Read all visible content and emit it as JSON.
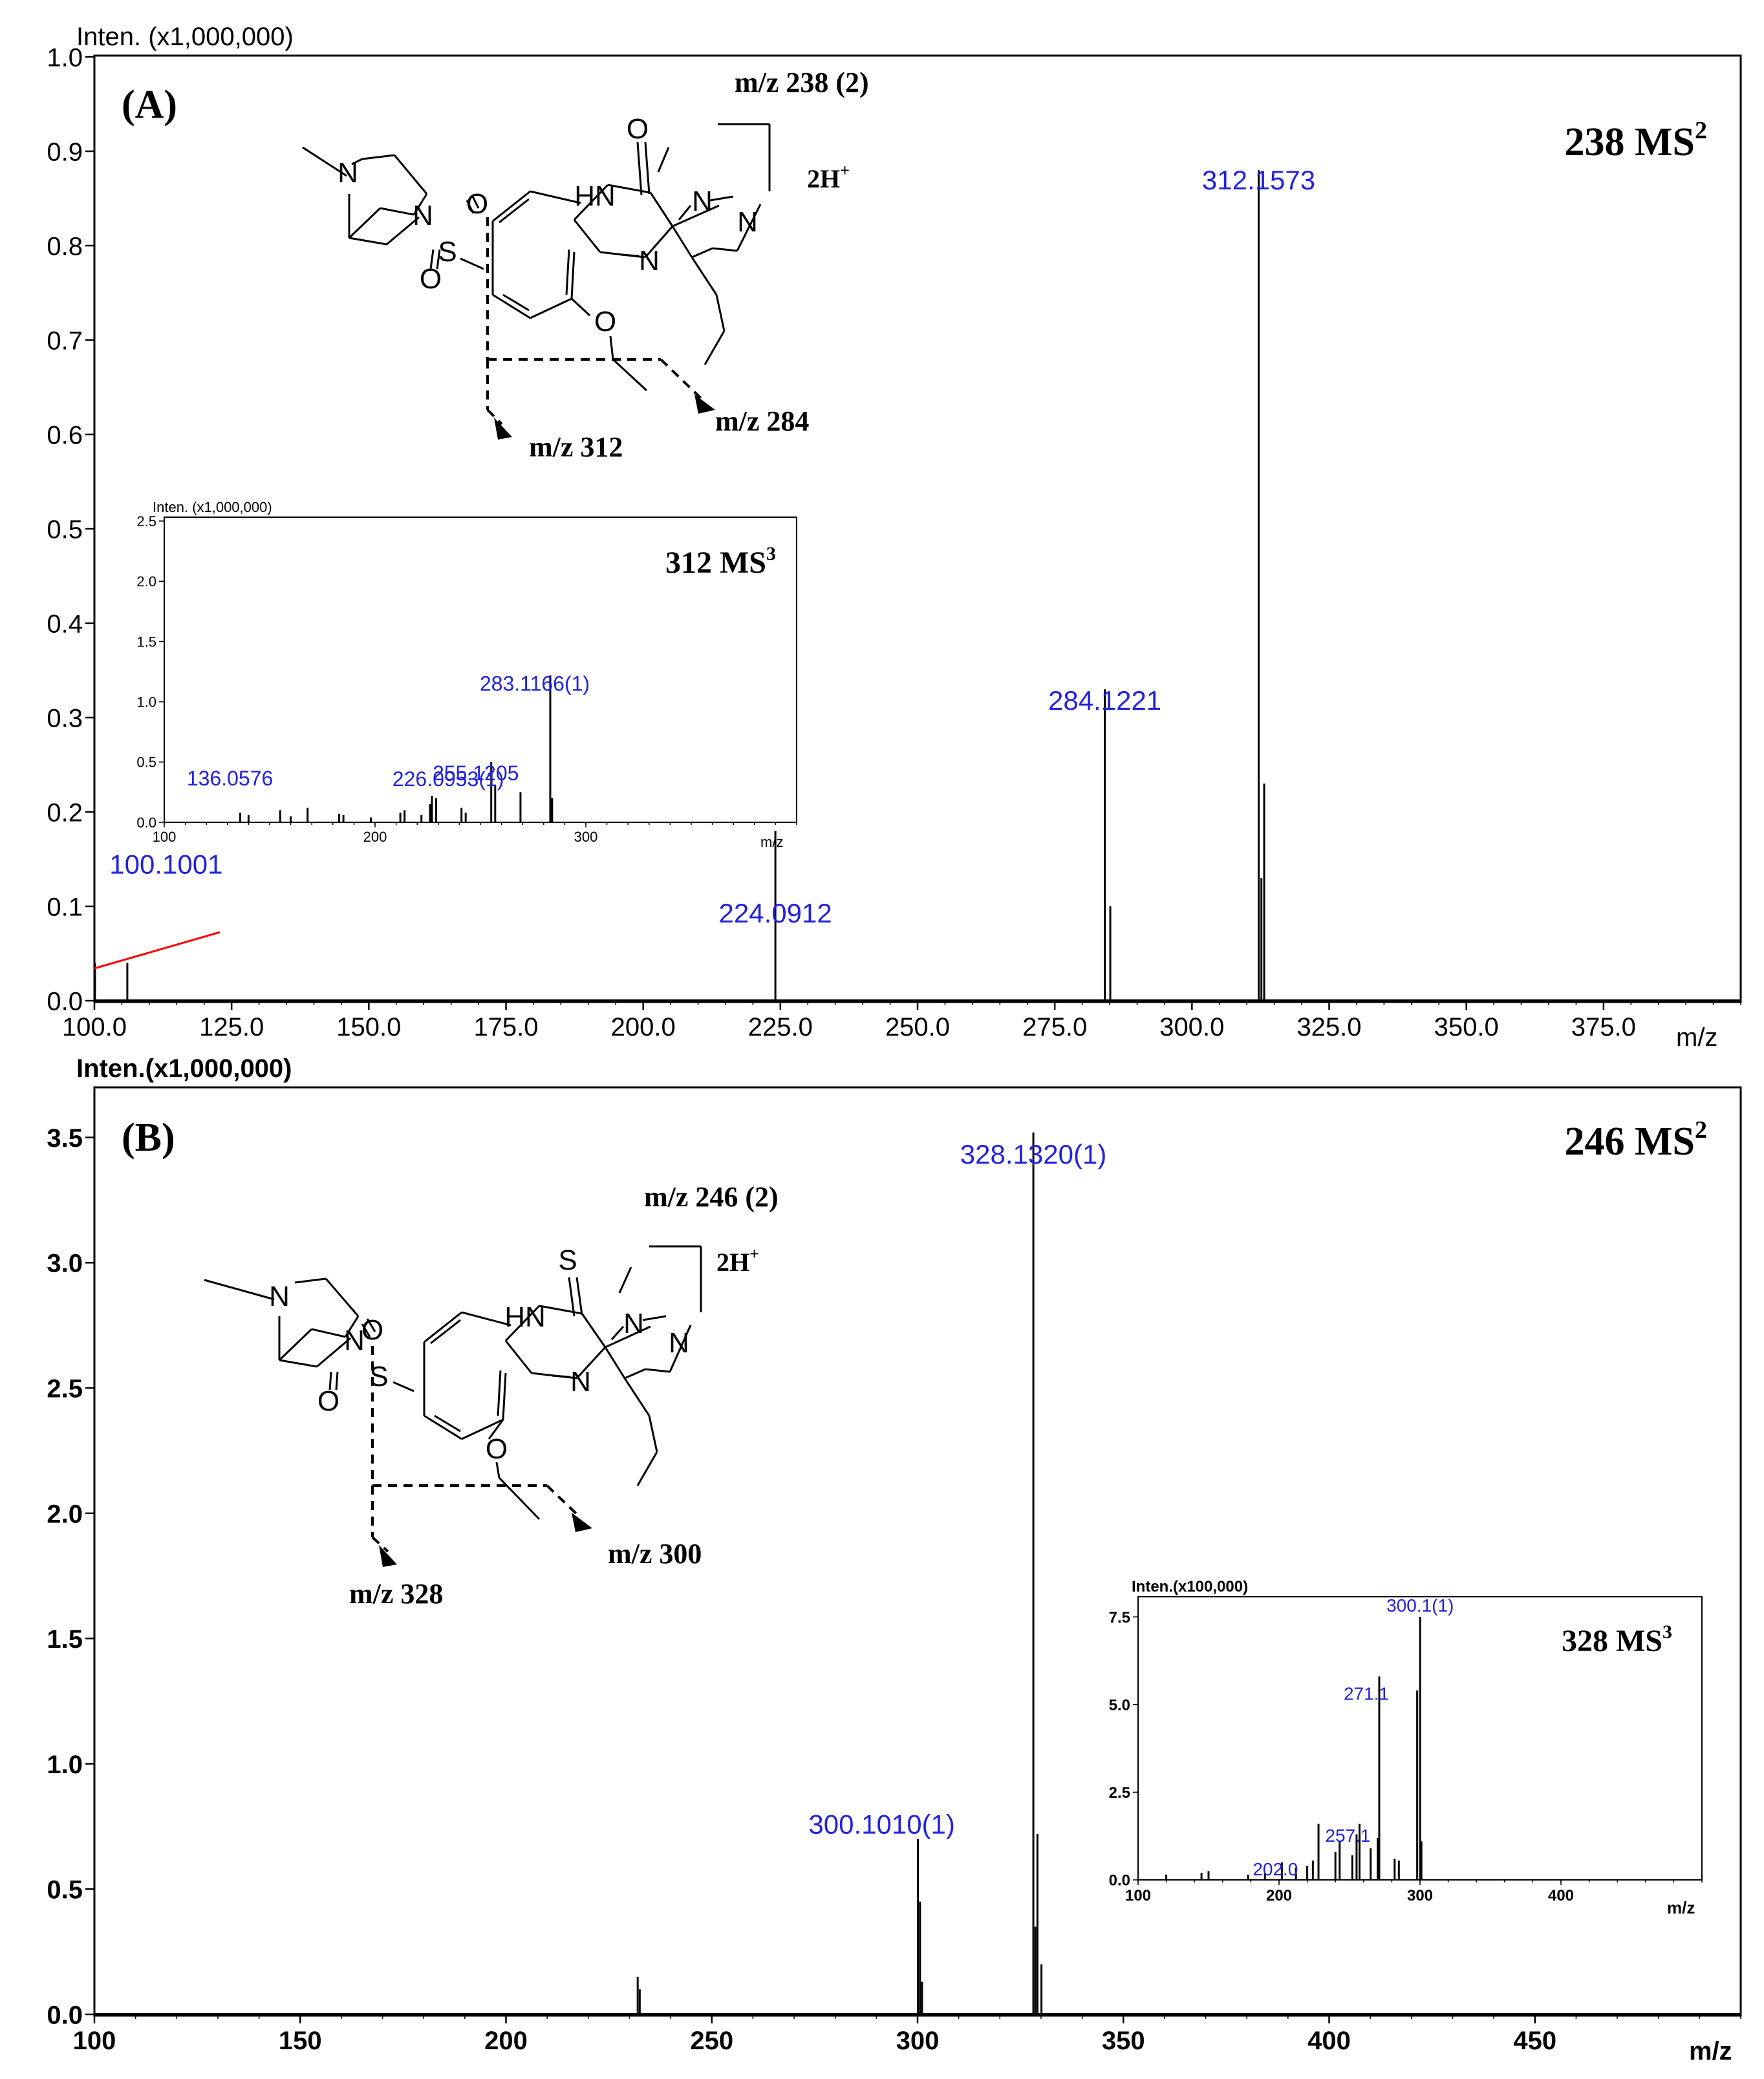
{
  "colors": {
    "peak_label": "#2222dd",
    "axis": "#000000",
    "annotation_line": "#ff0000",
    "background": "#ffffff"
  },
  "panel_a": {
    "panel_label": "(A)",
    "title_mz": "238",
    "title_ms": "MS",
    "title_sup": "2",
    "precursor_label": "m/z 238 (2)",
    "charge_label": "2H",
    "charge_sup": "+",
    "fragment_labels": [
      "m/z 312",
      "m/z 284"
    ],
    "structure_atoms": [
      "O",
      "N",
      "N",
      "N",
      "HN",
      "N",
      "N",
      "S",
      "O",
      "O",
      "O"
    ],
    "chart_data": {
      "type": "bar",
      "title": "238 MS2",
      "xlabel": "m/z",
      "ylabel": "Inten. (x1,000,000)",
      "xlim": [
        100,
        400
      ],
      "ylim": [
        0,
        1.0
      ],
      "x_ticks": [
        "100.0",
        "125.0",
        "150.0",
        "175.0",
        "200.0",
        "225.0",
        "250.0",
        "275.0",
        "300.0",
        "325.0",
        "350.0",
        "375.0"
      ],
      "y_ticks": [
        "0.0",
        "0.1",
        "0.2",
        "0.3",
        "0.4",
        "0.5",
        "0.6",
        "0.7",
        "0.8",
        "0.9",
        "1.0"
      ],
      "peaks": [
        {
          "x": 100.1001,
          "y": 0.04
        },
        {
          "x": 106.0,
          "y": 0.04
        },
        {
          "x": 224.0912,
          "y": 0.18
        },
        {
          "x": 284.1221,
          "y": 0.33
        },
        {
          "x": 285.12,
          "y": 0.1
        },
        {
          "x": 312.1573,
          "y": 0.88
        },
        {
          "x": 312.65,
          "y": 0.13
        },
        {
          "x": 313.16,
          "y": 0.23
        }
      ],
      "labels": [
        {
          "text": "312.1573",
          "x": 312.1573
        },
        {
          "text": "284.1221",
          "x": 284.1221
        },
        {
          "text": "224.0912",
          "x": 224.0912
        },
        {
          "text": "100.1001",
          "x": 100.1001
        }
      ]
    }
  },
  "inset_a": {
    "title_mz": "312",
    "title_ms": "MS",
    "title_sup": "3",
    "chart_data": {
      "type": "bar",
      "title": "312 MS3",
      "xlabel": "m/z",
      "ylabel": "Inten. (x1,000,000)",
      "xlim": [
        100,
        400
      ],
      "ylim": [
        0,
        2.5
      ],
      "x_ticks": [
        "100",
        "200",
        "300"
      ],
      "y_ticks": [
        "0.0",
        "0.5",
        "1.0",
        "1.5",
        "2.0",
        "2.5"
      ],
      "peaks": [
        {
          "x": 136.06,
          "y": 0.08
        },
        {
          "x": 140,
          "y": 0.06
        },
        {
          "x": 155,
          "y": 0.1
        },
        {
          "x": 160,
          "y": 0.05
        },
        {
          "x": 168,
          "y": 0.12
        },
        {
          "x": 183,
          "y": 0.07
        },
        {
          "x": 185,
          "y": 0.06
        },
        {
          "x": 198,
          "y": 0.04
        },
        {
          "x": 212,
          "y": 0.08
        },
        {
          "x": 214,
          "y": 0.1
        },
        {
          "x": 222,
          "y": 0.06
        },
        {
          "x": 226.1,
          "y": 0.15
        },
        {
          "x": 227,
          "y": 0.22
        },
        {
          "x": 229,
          "y": 0.2
        },
        {
          "x": 241,
          "y": 0.12
        },
        {
          "x": 243,
          "y": 0.08
        },
        {
          "x": 255.12,
          "y": 0.5
        },
        {
          "x": 257,
          "y": 0.3
        },
        {
          "x": 269,
          "y": 0.25
        },
        {
          "x": 283.12,
          "y": 1.22
        },
        {
          "x": 284,
          "y": 0.2
        }
      ],
      "labels": [
        {
          "text": "283.1166(1)",
          "x": 283.12
        },
        {
          "text": "255.1205",
          "x": 255.12
        },
        {
          "text": "226.0953(1)",
          "x": 226.1
        },
        {
          "text": "136.0576",
          "x": 136.06
        }
      ]
    }
  },
  "panel_b": {
    "panel_label": "(B)",
    "title_mz": "246",
    "title_ms": "MS",
    "title_sup": "2",
    "precursor_label": "m/z 246 (2)",
    "charge_label": "2H",
    "charge_sup": "+",
    "fragment_labels": [
      "m/z 328",
      "m/z 300"
    ],
    "structure_atoms": [
      "S",
      "N",
      "N",
      "N",
      "HN",
      "N",
      "N",
      "S",
      "O",
      "O",
      "O"
    ],
    "chart_data": {
      "type": "bar",
      "title": "246 MS2",
      "xlabel": "m/z",
      "ylabel": "Inten.(x1,000,000)",
      "xlim": [
        100,
        500
      ],
      "ylim": [
        0,
        3.7
      ],
      "x_ticks": [
        "100",
        "150",
        "200",
        "250",
        "300",
        "350",
        "400",
        "450"
      ],
      "y_ticks": [
        "0.0",
        "0.5",
        "1.0",
        "1.5",
        "2.0",
        "2.5",
        "3.0",
        "3.5"
      ],
      "peaks": [
        {
          "x": 232,
          "y": 0.15
        },
        {
          "x": 232.5,
          "y": 0.1
        },
        {
          "x": 300.101,
          "y": 0.7
        },
        {
          "x": 300.6,
          "y": 0.45
        },
        {
          "x": 301.1,
          "y": 0.13
        },
        {
          "x": 328.132,
          "y": 3.52
        },
        {
          "x": 328.63,
          "y": 0.35
        },
        {
          "x": 329.13,
          "y": 0.72
        },
        {
          "x": 330.1,
          "y": 0.2
        }
      ],
      "labels": [
        {
          "text": "328.1320(1)",
          "x": 328.132
        },
        {
          "text": "300.1010(1)",
          "x": 300.101
        }
      ]
    }
  },
  "inset_b": {
    "title_mz": "328",
    "title_ms": "MS",
    "title_sup": "3",
    "chart_data": {
      "type": "bar",
      "title": "328 MS3",
      "xlabel": "m/z",
      "ylabel": "Inten.(x100,000)",
      "xlim": [
        100,
        500
      ],
      "ylim": [
        0,
        8
      ],
      "x_ticks": [
        "100",
        "200",
        "300",
        "400"
      ],
      "y_ticks": [
        "0.0",
        "2.5",
        "5.0",
        "7.5"
      ],
      "peaks": [
        {
          "x": 120,
          "y": 0.15
        },
        {
          "x": 145,
          "y": 0.2
        },
        {
          "x": 150,
          "y": 0.25
        },
        {
          "x": 178,
          "y": 0.15
        },
        {
          "x": 190,
          "y": 0.2
        },
        {
          "x": 202.0,
          "y": 0.5
        },
        {
          "x": 212,
          "y": 0.35
        },
        {
          "x": 220,
          "y": 0.4
        },
        {
          "x": 224,
          "y": 0.55
        },
        {
          "x": 228,
          "y": 1.6
        },
        {
          "x": 240,
          "y": 0.8
        },
        {
          "x": 243,
          "y": 1.1
        },
        {
          "x": 252,
          "y": 0.7
        },
        {
          "x": 255,
          "y": 1.3
        },
        {
          "x": 257.1,
          "y": 1.6
        },
        {
          "x": 265,
          "y": 0.9
        },
        {
          "x": 270,
          "y": 1.2
        },
        {
          "x": 271.1,
          "y": 5.8
        },
        {
          "x": 282,
          "y": 0.6
        },
        {
          "x": 285,
          "y": 0.55
        },
        {
          "x": 298,
          "y": 5.4
        },
        {
          "x": 300.1,
          "y": 7.5
        },
        {
          "x": 301,
          "y": 1.1
        }
      ],
      "labels": [
        {
          "text": "300.1(1)",
          "x": 300.1
        },
        {
          "text": "271.1",
          "x": 271.1
        },
        {
          "text": "257.1",
          "x": 257.1
        },
        {
          "text": "202.0",
          "x": 202.0
        }
      ]
    }
  }
}
